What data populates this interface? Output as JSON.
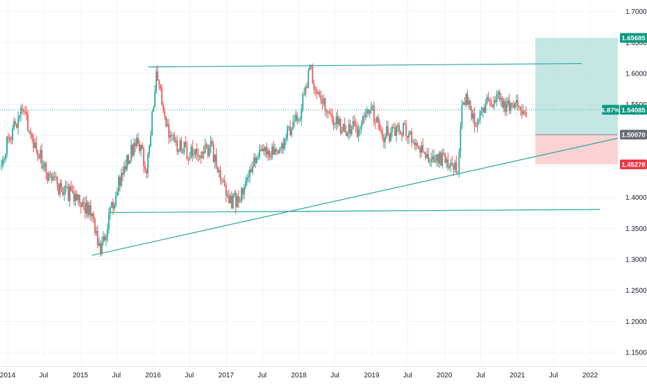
{
  "chart_data": {
    "type": "candlestick",
    "x_ticks": [
      "2014",
      "Jul",
      "2015",
      "Jul",
      "2016",
      "Jul",
      "2017",
      "Jul",
      "2018",
      "Jul",
      "2019",
      "Jul",
      "2020",
      "Jul",
      "2021",
      "Jul",
      "2022"
    ],
    "x_tick_dates": [
      "2014-01-01",
      "2014-07-01",
      "2015-01-01",
      "2015-07-01",
      "2016-01-01",
      "2016-07-01",
      "2017-01-01",
      "2017-07-01",
      "2018-01-01",
      "2018-07-01",
      "2019-01-01",
      "2019-07-01",
      "2020-01-01",
      "2020-07-01",
      "2021-01-01",
      "2021-07-01",
      "2022-01-01"
    ],
    "y_ticks": [
      "1.70000",
      "1.65000",
      "1.60000",
      "1.55000",
      "1.50000",
      "1.45000",
      "1.40000",
      "1.35000",
      "1.30000",
      "1.25000",
      "1.20000",
      "1.15000"
    ],
    "y_tick_values": [
      1.7,
      1.65,
      1.6,
      1.55,
      1.5,
      1.45,
      1.4,
      1.35,
      1.3,
      1.25,
      1.2,
      1.15
    ],
    "ylim": [
      1.127,
      1.718
    ],
    "xlim": [
      "2013-11-24",
      "2022-05-20"
    ],
    "grid": true,
    "anchors": [
      [
        "2013-12-01",
        1.45
      ],
      [
        "2014-01-01",
        1.49
      ],
      [
        "2014-03-15",
        1.54
      ],
      [
        "2014-05-01",
        1.5
      ],
      [
        "2014-07-15",
        1.44
      ],
      [
        "2014-10-01",
        1.41
      ],
      [
        "2014-12-15",
        1.4
      ],
      [
        "2015-03-01",
        1.37
      ],
      [
        "2015-04-13",
        1.31
      ],
      [
        "2015-06-01",
        1.38
      ],
      [
        "2015-08-01",
        1.44
      ],
      [
        "2015-10-15",
        1.5
      ],
      [
        "2015-12-01",
        1.44
      ],
      [
        "2016-01-18",
        1.6
      ],
      [
        "2016-03-01",
        1.52
      ],
      [
        "2016-05-01",
        1.48
      ],
      [
        "2016-08-01",
        1.47
      ],
      [
        "2016-10-15",
        1.48
      ],
      [
        "2016-12-01",
        1.44
      ],
      [
        "2017-01-20",
        1.39
      ],
      [
        "2017-03-15",
        1.4
      ],
      [
        "2017-05-15",
        1.45
      ],
      [
        "2017-07-01",
        1.49
      ],
      [
        "2017-09-15",
        1.46
      ],
      [
        "2017-11-15",
        1.51
      ],
      [
        "2018-01-01",
        1.53
      ],
      [
        "2018-02-26",
        1.61
      ],
      [
        "2018-04-01",
        1.57
      ],
      [
        "2018-06-01",
        1.53
      ],
      [
        "2018-08-15",
        1.51
      ],
      [
        "2018-11-01",
        1.51
      ],
      [
        "2019-01-01",
        1.54
      ],
      [
        "2019-03-01",
        1.5
      ],
      [
        "2019-06-01",
        1.51
      ],
      [
        "2019-08-15",
        1.49
      ],
      [
        "2019-10-15",
        1.46
      ],
      [
        "2019-12-15",
        1.46
      ],
      [
        "2020-03-09",
        1.44
      ],
      [
        "2020-03-23",
        1.53
      ],
      [
        "2020-04-15",
        1.56
      ],
      [
        "2020-06-01",
        1.52
      ],
      [
        "2020-08-01",
        1.55
      ],
      [
        "2020-09-15",
        1.56
      ],
      [
        "2020-11-01",
        1.55
      ],
      [
        "2021-01-01",
        1.55
      ],
      [
        "2021-02-15",
        1.54
      ]
    ],
    "candle_color_up": "#26a69a",
    "candle_color_down": "#ef5350",
    "trendlines": [
      {
        "from": [
          "2015-12-08",
          1.61
        ],
        "to": [
          "2021-11-20",
          1.6155
        ],
        "color": "#26a69a"
      },
      {
        "from": [
          "2015-06-01",
          1.375
        ],
        "to": [
          "2022-02-20",
          1.38
        ],
        "color": "#26a69a"
      },
      {
        "from": [
          "2015-03-01",
          1.306
        ],
        "to": [
          "2022-05-20",
          1.495
        ],
        "color": "#26a69a"
      }
    ],
    "position": {
      "start_date": "2021-04-01",
      "end_date": "2022-05-20",
      "target": 1.65685,
      "entry": 1.5007,
      "stop": 1.45278,
      "profit_color": "#b2dfdb",
      "loss_color": "#fccbcd"
    },
    "last_price": 1.54085,
    "price_labels": [
      {
        "text": "1.65685",
        "value": 1.65685,
        "color": "#089981"
      },
      {
        "text": "1.54085",
        "value": 1.54085,
        "color": "#089981",
        "prefix": "6.87%"
      },
      {
        "text": "1.50070",
        "value": 1.5007,
        "color": "#6a6d78"
      },
      {
        "text": "1.45278",
        "value": 1.45278,
        "color": "#f23645"
      }
    ]
  }
}
